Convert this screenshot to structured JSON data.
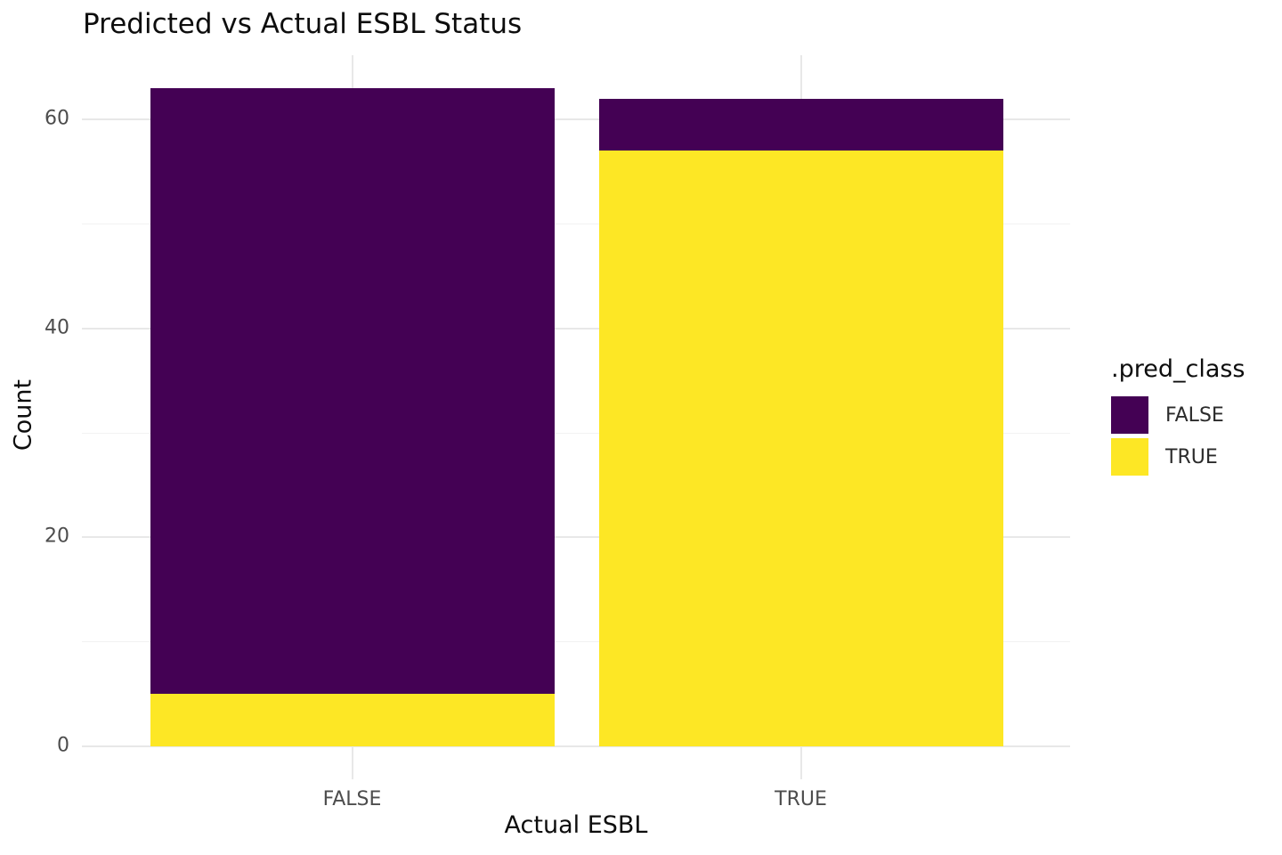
{
  "chart_data": {
    "type": "bar",
    "stacked": true,
    "title": "Predicted vs Actual ESBL Status",
    "xlabel": "Actual ESBL",
    "ylabel": "Count",
    "categories": [
      "FALSE",
      "TRUE"
    ],
    "series": [
      {
        "name": "FALSE",
        "color": "#440154",
        "values": [
          58,
          5
        ]
      },
      {
        "name": "TRUE",
        "color": "#FDE725",
        "values": [
          5,
          57
        ]
      }
    ],
    "stack_order_bottom_to_top": [
      "TRUE",
      "FALSE"
    ],
    "bar_totals": [
      63,
      62
    ],
    "y_ticks": [
      0,
      20,
      40,
      60
    ],
    "y_minor_ticks": [
      10,
      30,
      50
    ],
    "ylim": [
      0,
      66
    ],
    "grid": true,
    "background": "#ffffff",
    "axis_text_color": "#4d4d4d",
    "legend": {
      "title": ".pred_class",
      "position": "right",
      "items": [
        {
          "label": "FALSE",
          "color": "#440154"
        },
        {
          "label": "TRUE",
          "color": "#FDE725"
        }
      ]
    }
  }
}
